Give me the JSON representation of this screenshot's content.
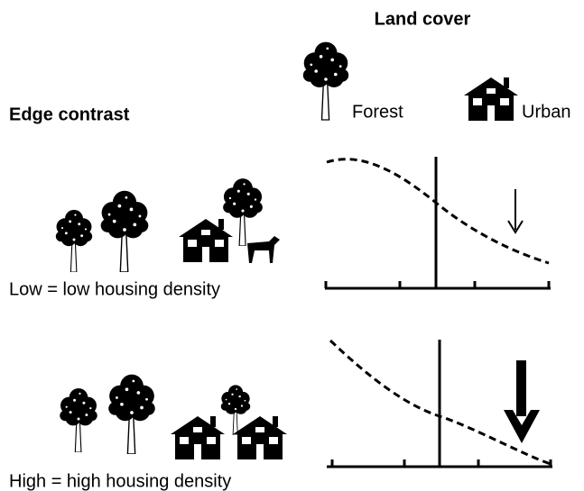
{
  "header": {
    "title": "Land cover",
    "legend": {
      "forest": "Forest",
      "urban": "Urban"
    }
  },
  "row_title": "Edge contrast",
  "panels": [
    {
      "label": "Low = low housing density"
    },
    {
      "label": "High = high housing density"
    }
  ]
}
